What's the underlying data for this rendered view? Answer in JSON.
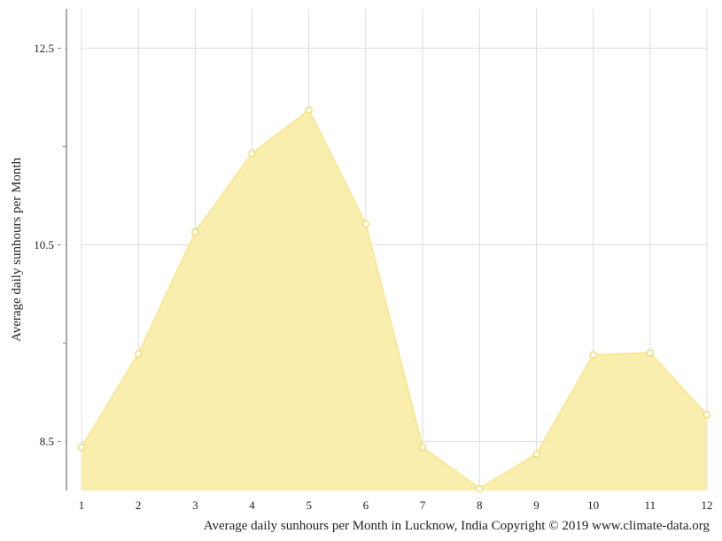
{
  "chart_data": {
    "type": "area",
    "title": "",
    "xlabel": "",
    "ylabel": "Average daily sunhours per Month",
    "caption": "Average daily sunhours per Month in Lucknow, India Copyright © 2019 www.climate-data.org",
    "x": [
      1,
      2,
      3,
      4,
      5,
      6,
      7,
      8,
      9,
      10,
      11,
      12
    ],
    "series": [
      {
        "values": [
          8.44,
          9.39,
          10.63,
          11.43,
          11.87,
          10.71,
          8.44,
          8.02,
          8.37,
          9.38,
          9.4,
          8.77
        ]
      }
    ],
    "xlim": [
      1,
      12
    ],
    "ylim": [
      8.0,
      12.9
    ],
    "y_ticks": [
      8.5,
      10.5,
      12.5
    ],
    "y_tick_labels": [
      "8.5",
      "10.5",
      "12.5"
    ],
    "y_minor_ticks": [
      9.5,
      11.5
    ],
    "x_tick_labels": [
      "1",
      "2",
      "3",
      "4",
      "5",
      "6",
      "7",
      "8",
      "9",
      "10",
      "11",
      "12"
    ],
    "grid": true,
    "legend": "none",
    "colors": {
      "fill": "#faedaa",
      "line": "#f9e797",
      "marker_fill": "#ffffff",
      "marker_stroke": "#f0d45a",
      "grid": "#dddddd",
      "axis": "#555555"
    }
  }
}
